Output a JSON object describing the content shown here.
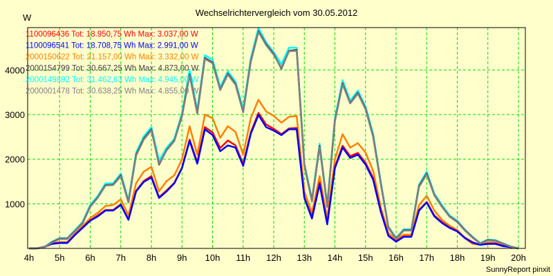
{
  "chart_data": {
    "type": "line",
    "title": "Wechselrichtervergleich vom 30.05.2012",
    "ylabel": "W",
    "xlabel": "",
    "footer": "SunnyReport pinxit",
    "xlim": [
      4,
      20
    ],
    "ylim": [
      0,
      4950
    ],
    "x_step_hours": 0.25,
    "x_ticks": [
      4,
      5,
      6,
      7,
      8,
      9,
      10,
      11,
      12,
      13,
      14,
      15,
      16,
      17,
      18,
      19,
      20
    ],
    "x_tick_labels": [
      "4h",
      "5h",
      "6h",
      "7h",
      "8h",
      "9h",
      "10h",
      "11h",
      "12h",
      "13h",
      "14h",
      "15h",
      "16h",
      "17h",
      "18h",
      "19h",
      "20h"
    ],
    "y_ticks": [
      1000,
      2000,
      3000,
      4000
    ],
    "y_tick_labels": [
      "1000",
      "2000",
      "3000",
      "4000"
    ],
    "grid": true,
    "legend_placement": "top-left",
    "series": [
      {
        "name": "1100096436",
        "legend": "1100096436 Tot: 18.950,75 Wh Max: 3.037,00 W",
        "color": "#ff0000",
        "values": [
          0,
          0,
          35,
          110,
          130,
          130,
          310,
          470,
          630,
          740,
          860,
          860,
          990,
          650,
          1290,
          1510,
          1620,
          1150,
          1300,
          1470,
          1810,
          2440,
          1930,
          2720,
          2600,
          2250,
          2420,
          2310,
          1890,
          2600,
          3037,
          2780,
          2680,
          2560,
          2690,
          2700,
          1150,
          700,
          1480,
          560,
          1830,
          2300,
          2070,
          2140,
          1920,
          1580,
          850,
          290,
          160,
          270,
          270,
          860,
          1040,
          740,
          590,
          470,
          390,
          240,
          140,
          80,
          110,
          110,
          60,
          30,
          0
        ]
      },
      {
        "name": "1100096541",
        "legend": "1100096541 Tot: 18.708,75 Wh Max: 2.991,00 W",
        "color": "#0000ff",
        "values": [
          0,
          0,
          30,
          100,
          120,
          120,
          300,
          460,
          620,
          720,
          850,
          850,
          975,
          640,
          1280,
          1490,
          1590,
          1130,
          1280,
          1460,
          1800,
          2410,
          1900,
          2670,
          2540,
          2180,
          2310,
          2260,
          1850,
          2570,
          2991,
          2720,
          2640,
          2540,
          2670,
          2670,
          1130,
          670,
          1440,
          540,
          1800,
          2260,
          2030,
          2100,
          1880,
          1540,
          820,
          280,
          150,
          260,
          260,
          850,
          1030,
          720,
          570,
          460,
          380,
          230,
          130,
          80,
          100,
          100,
          50,
          30,
          0
        ]
      },
      {
        "name": "2000150622",
        "legend": "2000150622 Tot: 21.157,00 Wh Max: 3.332,00 W",
        "color": "#ff8000",
        "values": [
          0,
          0,
          30,
          110,
          140,
          140,
          320,
          500,
          680,
          800,
          950,
          975,
          1100,
          740,
          1460,
          1720,
          1830,
          1280,
          1510,
          1640,
          2000,
          2740,
          2100,
          3000,
          2920,
          2480,
          2740,
          2610,
          2100,
          2920,
          3332,
          3070,
          2970,
          2820,
          2950,
          2970,
          1280,
          800,
          1620,
          670,
          2000,
          2560,
          2260,
          2360,
          2150,
          1740,
          920,
          340,
          200,
          310,
          310,
          970,
          1180,
          850,
          640,
          510,
          410,
          230,
          100,
          80,
          130,
          130,
          80,
          40,
          0
        ]
      },
      {
        "name": "2000154799",
        "legend": "2000154799 Tot: 30.667,25 Wh Max: 4.873,00 W",
        "color": "#4a3a4a",
        "values": [
          0,
          0,
          25,
          140,
          220,
          220,
          390,
          570,
          940,
          1150,
          1420,
          1430,
          1640,
          1040,
          2100,
          2460,
          2670,
          1880,
          2210,
          2420,
          2980,
          3900,
          3040,
          4270,
          4170,
          3560,
          3920,
          3690,
          3060,
          4200,
          4873,
          4580,
          4360,
          4030,
          4430,
          4450,
          1870,
          1070,
          2300,
          950,
          2870,
          3700,
          3260,
          3490,
          3140,
          2520,
          1460,
          470,
          220,
          410,
          410,
          1400,
          1680,
          1200,
          940,
          720,
          600,
          410,
          250,
          110,
          190,
          175,
          105,
          40,
          0
        ]
      },
      {
        "name": "2000149892",
        "legend": "2000149892 Tot: 31.462,63 Wh Max: 4.945,00 W",
        "color": "#00ffff",
        "values": [
          0,
          0,
          30,
          150,
          230,
          230,
          410,
          590,
          975,
          1180,
          1460,
          1460,
          1680,
          1080,
          2150,
          2510,
          2720,
          1970,
          2260,
          2460,
          3030,
          4000,
          3100,
          4330,
          4230,
          3620,
          3970,
          3740,
          3130,
          4260,
          4945,
          4620,
          4400,
          4130,
          4500,
          4500,
          1900,
          1100,
          2350,
          980,
          2920,
          3770,
          3310,
          3540,
          3180,
          2570,
          1490,
          490,
          230,
          430,
          430,
          1430,
          1720,
          1230,
          970,
          740,
          620,
          420,
          260,
          120,
          200,
          185,
          110,
          45,
          0
        ]
      },
      {
        "name": "2000001478",
        "legend": "2000001478 Tot: 30.638,25 Wh Max: 4.855,00 W",
        "color": "#808080",
        "values": [
          0,
          0,
          20,
          130,
          210,
          210,
          380,
          560,
          930,
          1140,
          1410,
          1420,
          1620,
          1030,
          2080,
          2440,
          2650,
          1900,
          2200,
          2410,
          2960,
          3880,
          3020,
          4250,
          4150,
          3550,
          3900,
          3670,
          3050,
          4180,
          4855,
          4560,
          4340,
          4050,
          4420,
          4430,
          1850,
          1050,
          2280,
          930,
          2850,
          3680,
          3250,
          3470,
          3120,
          2500,
          1440,
          460,
          210,
          400,
          400,
          1380,
          1660,
          1190,
          930,
          710,
          590,
          400,
          240,
          110,
          180,
          170,
          100,
          40,
          0
        ]
      }
    ]
  }
}
